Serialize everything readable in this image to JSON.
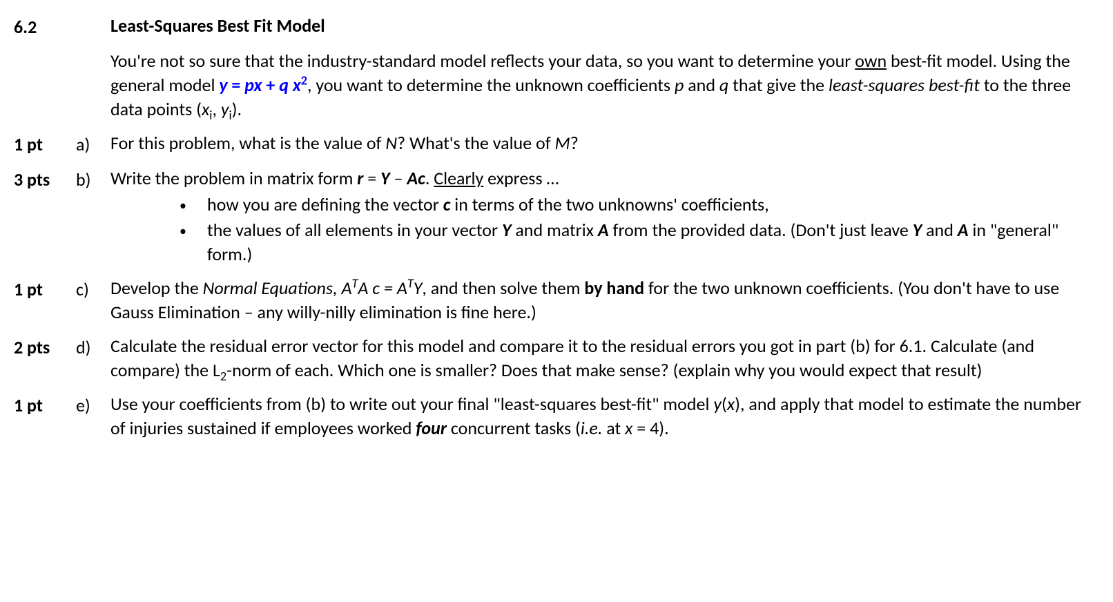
{
  "section": {
    "number": "6.2",
    "title": "Least-Squares Best Fit Model"
  },
  "intro": {
    "line1_pre": "You're not so sure that the industry-standard model reflects your data, so you want to determine your ",
    "own": "own",
    "line1_post": " best-fit model.  Using the general model ",
    "model_y": "y",
    "model_eq": " = ",
    "model_p": "p",
    "model_x": "x",
    "model_plus": " + ",
    "model_q": "q ",
    "model_x2": "x",
    "model_sq": "2",
    "line1_tail": ", you want to determine the unknown coefficients ",
    "p": "p",
    "and": " and ",
    "q": "q",
    "gives": " that give the ",
    "lsbf": "least-squares best-fit",
    "line1_end": " to the three data points (",
    "xi_x": "x",
    "xi_sub": "i",
    "comma": ", ",
    "yi_y": "y",
    "yi_sub": "i",
    "close": ")."
  },
  "parts": {
    "a": {
      "pts": "1 pt",
      "letter": "a)",
      "t1": "For this problem, what is the value of ",
      "N": "N",
      "t2": "?  What's the value of ",
      "M": "M",
      "t3": "?"
    },
    "b": {
      "pts": "3 pts",
      "letter": "b)",
      "t1": "Write the problem in matrix form ",
      "r": "r",
      "eq": " = ",
      "Y": "Y",
      "minus": " – ",
      "A": "A",
      "c": "c",
      "dot": ".   ",
      "clearly": "Clearly",
      "express": " express …",
      "bullet1_pre": "how you are defining the vector ",
      "bullet1_c": "c",
      "bullet1_post": " in terms of the two unknowns' coefficients,",
      "bullet2_pre": "the values of all elements in your vector ",
      "bullet2_Y": "Y",
      "bullet2_mid": " and matrix ",
      "bullet2_A": "A",
      "bullet2_post": " from the provided data.  (Don't just leave ",
      "bullet2_Y2": "Y",
      "bullet2_and": " and ",
      "bullet2_A2": "A",
      "bullet2_end": " in \"general\" form.)"
    },
    "c": {
      "pts": "1 pt",
      "letter": "c)",
      "t1": "Develop the ",
      "ne": "Normal Equations, A",
      "T1": "T",
      "ne2": "A c = A",
      "T2": "T",
      "ne3": "Y",
      "t2": ", and then solve them ",
      "byhand": "by hand",
      "t3": " for the two unknown coefficients.  (You don't have to use Gauss Elimination – any willy-nilly elimination is fine here.)"
    },
    "d": {
      "pts": "2 pts",
      "letter": "d)",
      "t1": "Calculate the residual error vector for this model and compare it to the residual errors you got in part (b) for 6.1.  Calculate (and compare) the L",
      "sub2": "2",
      "t2": "-norm of each.  Which one is smaller?  Does that make sense? (explain why you would expect that result)"
    },
    "e": {
      "pts": "1 pt",
      "letter": "e)",
      "t1": "Use your coefficients from (b) to write out your final \"least-squares best-fit\" model ",
      "yx": "y",
      "paren": "(",
      "x": "x",
      "paren2": ")",
      "t2": ", and apply that model to estimate the number of injuries sustained if employees worked ",
      "four": "four",
      "t3": " concurrent tasks (",
      "ie": "i.e.",
      "t4": " at ",
      "x2": "x",
      "t5": " = 4)."
    }
  }
}
